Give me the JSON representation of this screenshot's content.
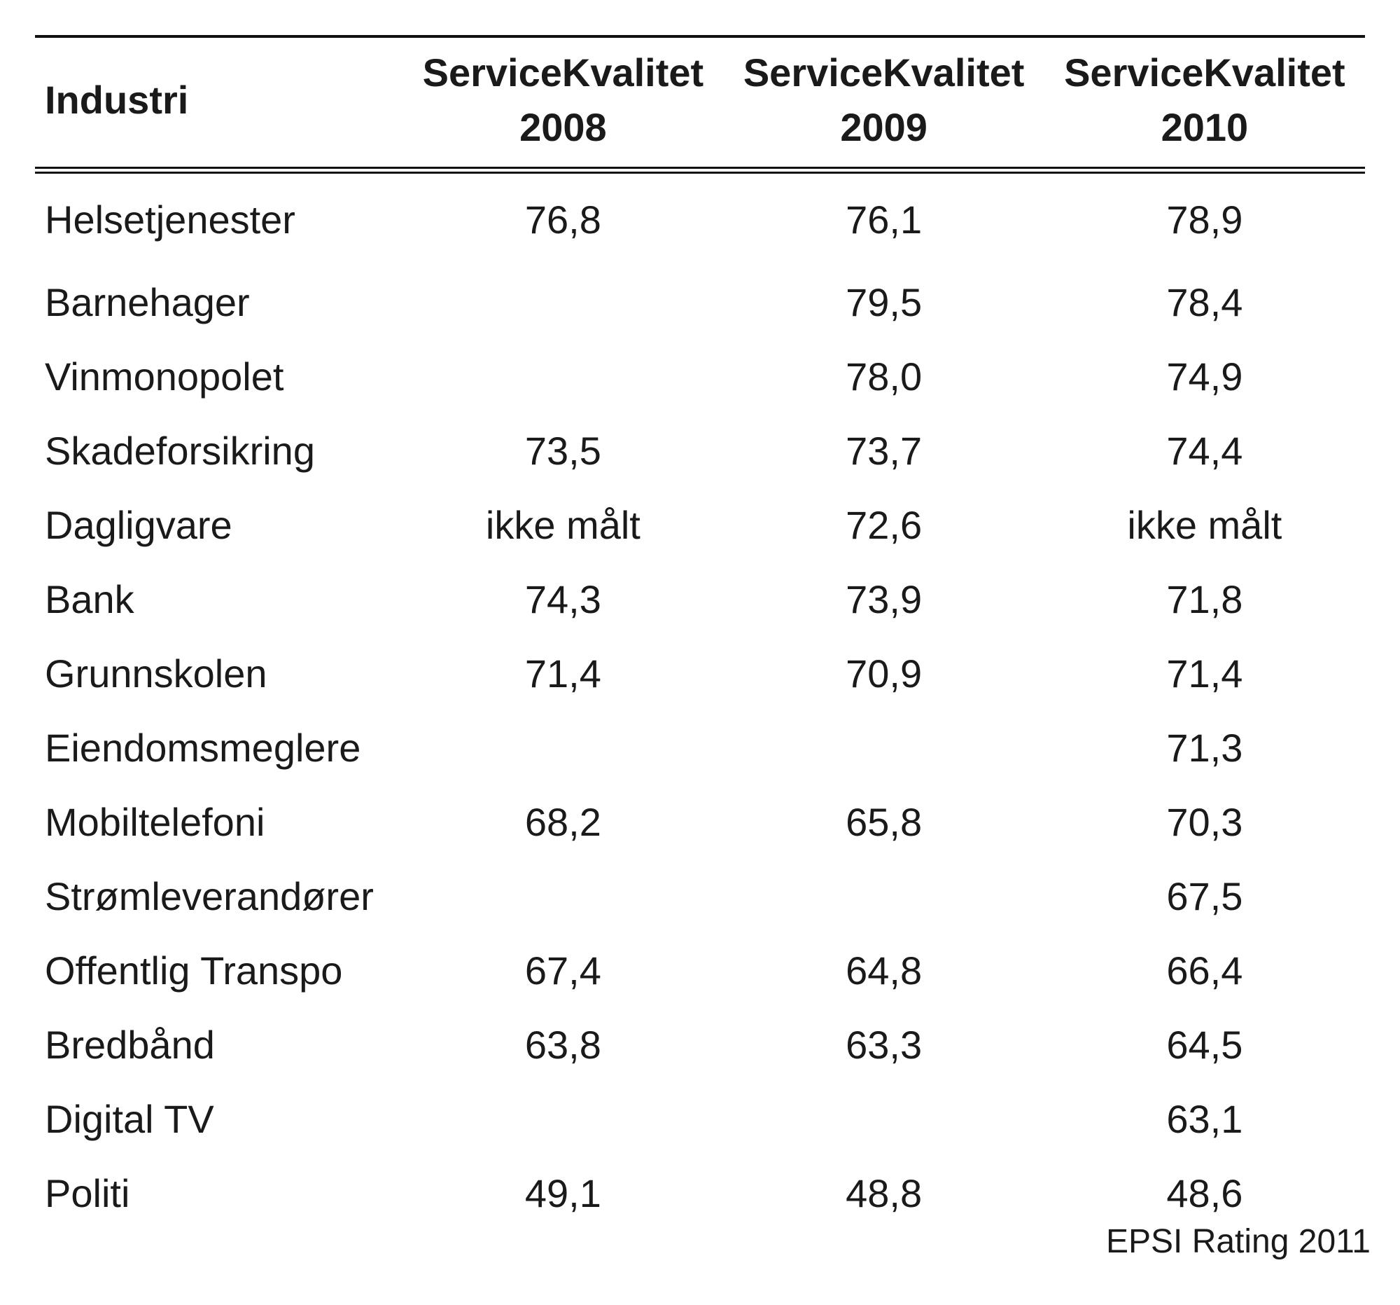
{
  "chart_data": {
    "type": "table",
    "columns": [
      {
        "line1": "Industri",
        "line2": ""
      },
      {
        "line1": "ServiceKvalitet",
        "line2": "2008"
      },
      {
        "line1": "ServiceKvalitet",
        "line2": "2009"
      },
      {
        "line1": "ServiceKvalitet",
        "line2": "2010"
      }
    ],
    "rows": [
      [
        "Helsetjenester",
        "76,8",
        "76,1",
        "78,9"
      ],
      [
        "Barnehager",
        "",
        "79,5",
        "78,4"
      ],
      [
        "Vinmonopolet",
        "",
        "78,0",
        "74,9"
      ],
      [
        "Skadeforsikring",
        "73,5",
        "73,7",
        "74,4"
      ],
      [
        "Dagligvare",
        "ikke målt",
        "72,6",
        "ikke målt"
      ],
      [
        "Bank",
        "74,3",
        "73,9",
        "71,8"
      ],
      [
        "Grunnskolen",
        "71,4",
        "70,9",
        "71,4"
      ],
      [
        "Eiendomsmeglere",
        "",
        "",
        "71,3"
      ],
      [
        "Mobiltelefoni",
        "68,2",
        "65,8",
        "70,3"
      ],
      [
        "Strømleverandører",
        "",
        "",
        "67,5"
      ],
      [
        "Offentlig Transpo",
        "67,4",
        "64,8",
        "66,4"
      ],
      [
        "Bredbånd",
        "63,8",
        "63,3",
        "64,5"
      ],
      [
        "Digital TV",
        "",
        "",
        "63,1"
      ],
      [
        "Politi",
        "49,1",
        "48,8",
        "48,6"
      ]
    ],
    "source": "EPSI Rating 2011"
  }
}
